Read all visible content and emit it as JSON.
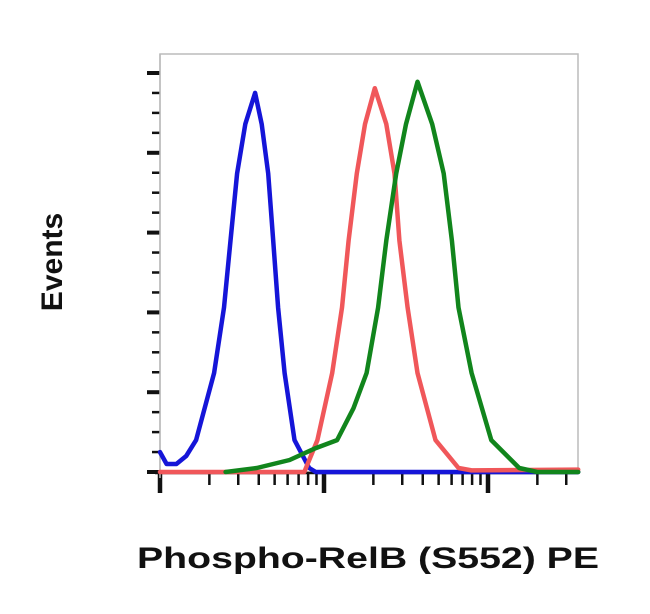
{
  "chart_data": {
    "type": "line",
    "title": "",
    "xlabel": "Phospho-RelB (S552) PE",
    "ylabel": "Events",
    "x_scale": "log",
    "xlim": [
      0,
      2.55
    ],
    "ylim": [
      0,
      5.24
    ],
    "x_major_ticks": [
      0,
      1,
      2
    ],
    "y_major_ticks": [
      0,
      1,
      2,
      3,
      4,
      5
    ],
    "tick_labels_shown": false,
    "grid": false,
    "legend": "none",
    "series": [
      {
        "color": "#1515d8",
        "points": [
          [
            0,
            0.25
          ],
          [
            0.04,
            0.1
          ],
          [
            0.1,
            0.1
          ],
          [
            0.16,
            0.2
          ],
          [
            0.22,
            0.4
          ],
          [
            0.33,
            1.24
          ],
          [
            0.39,
            2.06
          ],
          [
            0.43,
            2.9
          ],
          [
            0.47,
            3.74
          ],
          [
            0.52,
            4.36
          ],
          [
            0.58,
            4.75
          ],
          [
            0.62,
            4.36
          ],
          [
            0.66,
            3.74
          ],
          [
            0.69,
            2.9
          ],
          [
            0.72,
            2.06
          ],
          [
            0.76,
            1.24
          ],
          [
            0.82,
            0.4
          ],
          [
            0.91,
            0.05
          ],
          [
            0.95,
            0
          ],
          [
            2.55,
            0
          ]
        ]
      },
      {
        "color": "#f0575a",
        "points": [
          [
            0,
            0
          ],
          [
            0.88,
            0
          ],
          [
            0.96,
            0.4
          ],
          [
            1.05,
            1.24
          ],
          [
            1.11,
            2.06
          ],
          [
            1.15,
            2.9
          ],
          [
            1.2,
            3.74
          ],
          [
            1.25,
            4.36
          ],
          [
            1.31,
            4.81
          ],
          [
            1.38,
            4.36
          ],
          [
            1.43,
            3.74
          ],
          [
            1.46,
            2.9
          ],
          [
            1.51,
            2.06
          ],
          [
            1.57,
            1.24
          ],
          [
            1.68,
            0.4
          ],
          [
            1.82,
            0.05
          ],
          [
            1.9,
            0.02
          ],
          [
            2.55,
            0.03
          ]
        ]
      },
      {
        "color": "#11851c",
        "points": [
          [
            0.4,
            0
          ],
          [
            0.59,
            0.05
          ],
          [
            0.79,
            0.15
          ],
          [
            0.95,
            0.3
          ],
          [
            1.08,
            0.4
          ],
          [
            1.18,
            0.8
          ],
          [
            1.26,
            1.24
          ],
          [
            1.33,
            2.06
          ],
          [
            1.38,
            2.9
          ],
          [
            1.44,
            3.74
          ],
          [
            1.5,
            4.36
          ],
          [
            1.57,
            4.89
          ],
          [
            1.66,
            4.36
          ],
          [
            1.73,
            3.74
          ],
          [
            1.78,
            2.9
          ],
          [
            1.82,
            2.06
          ],
          [
            1.9,
            1.24
          ],
          [
            2.02,
            0.4
          ],
          [
            2.19,
            0.05
          ],
          [
            2.3,
            0
          ],
          [
            2.55,
            0
          ]
        ]
      }
    ]
  }
}
